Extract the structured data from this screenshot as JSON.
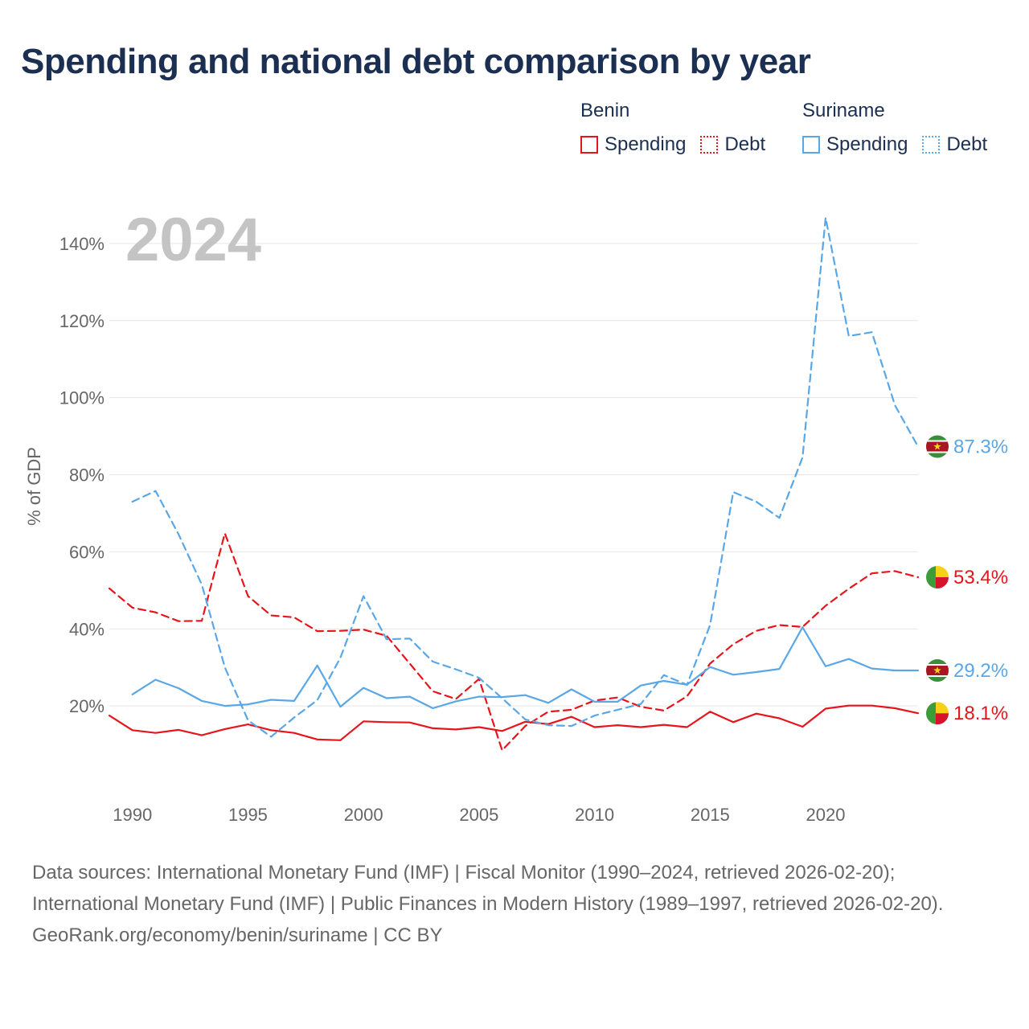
{
  "title": "Spending and national debt comparison by year",
  "legend": {
    "groups": [
      {
        "country": "Benin",
        "color": "#e8141b",
        "spending_label": "Spending",
        "debt_label": "Debt"
      },
      {
        "country": "Suriname",
        "color": "#5aa7e6",
        "spending_label": "Spending",
        "debt_label": "Debt"
      }
    ]
  },
  "chart_data": {
    "type": "line",
    "ylabel": "% of GDP",
    "year_label": "2024",
    "xlim": [
      1989,
      2024
    ],
    "ylim": [
      0,
      150
    ],
    "x_ticks": [
      "1990",
      "1995",
      "2000",
      "2005",
      "2010",
      "2015",
      "2020"
    ],
    "x_tick_values": [
      1990,
      1995,
      2000,
      2005,
      2010,
      2015,
      2020
    ],
    "y_ticks": [
      "20%",
      "40%",
      "60%",
      "80%",
      "100%",
      "120%",
      "140%"
    ],
    "y_tick_values": [
      20,
      40,
      60,
      80,
      100,
      120,
      140
    ],
    "series": [
      {
        "name": "Benin Spending",
        "country": "Benin",
        "kind": "spending",
        "color": "#e8141b",
        "dashed": false,
        "x": [
          1989,
          1990,
          1991,
          1992,
          1993,
          1994,
          1995,
          1996,
          1997,
          1998,
          1999,
          2000,
          2001,
          2002,
          2003,
          2004,
          2005,
          2006,
          2007,
          2008,
          2009,
          2010,
          2011,
          2012,
          2013,
          2014,
          2015,
          2016,
          2017,
          2018,
          2019,
          2020,
          2021,
          2022,
          2023,
          2024
        ],
        "values": [
          17.5,
          13.7,
          13.0,
          13.8,
          12.4,
          14.0,
          15.2,
          13.7,
          13.0,
          11.3,
          11.1,
          16.0,
          15.8,
          15.7,
          14.2,
          13.9,
          14.5,
          13.5,
          15.9,
          15.3,
          17.2,
          14.5,
          15.0,
          14.5,
          15.1,
          14.5,
          18.5,
          15.8,
          18.0,
          16.8,
          14.6,
          19.3,
          20.1,
          20.1,
          19.4,
          18.1
        ]
      },
      {
        "name": "Benin Debt",
        "country": "Benin",
        "kind": "debt",
        "color": "#e8141b",
        "dashed": true,
        "x": [
          1989,
          1990,
          1991,
          1992,
          1993,
          1994,
          1995,
          1996,
          1997,
          1998,
          1999,
          2000,
          2001,
          2002,
          2003,
          2004,
          2005,
          2006,
          2007,
          2008,
          2009,
          2010,
          2011,
          2012,
          2013,
          2014,
          2015,
          2016,
          2017,
          2018,
          2019,
          2020,
          2021,
          2022,
          2023,
          2024
        ],
        "values": [
          50.5,
          45.5,
          44.3,
          42.0,
          42.1,
          64.8,
          48.5,
          43.5,
          43.0,
          39.4,
          39.5,
          39.8,
          38.2,
          31.0,
          23.8,
          21.8,
          27.0,
          8.5,
          14.8,
          18.5,
          19.0,
          21.4,
          22.2,
          19.8,
          18.8,
          22.5,
          31.0,
          36.0,
          39.5,
          41.0,
          40.5,
          46.0,
          50.4,
          54.4,
          55.0,
          53.4
        ]
      },
      {
        "name": "Suriname Spending",
        "country": "Suriname",
        "kind": "spending",
        "color": "#5aa7e6",
        "dashed": false,
        "x": [
          1990,
          1991,
          1992,
          1993,
          1994,
          1995,
          1996,
          1997,
          1998,
          1999,
          2000,
          2001,
          2002,
          2003,
          2004,
          2005,
          2006,
          2007,
          2008,
          2009,
          2010,
          2011,
          2012,
          2013,
          2014,
          2015,
          2016,
          2017,
          2018,
          2019,
          2020,
          2021,
          2022,
          2023,
          2024
        ],
        "values": [
          23.0,
          26.8,
          24.6,
          21.3,
          20.0,
          20.4,
          21.6,
          21.3,
          30.5,
          19.8,
          24.7,
          22.0,
          22.4,
          19.4,
          21.2,
          22.4,
          22.3,
          22.8,
          20.8,
          24.3,
          21.1,
          21.1,
          25.3,
          26.5,
          25.5,
          30.1,
          28.1,
          28.8,
          29.6,
          40.4,
          30.3,
          32.2,
          29.7,
          29.2,
          29.2
        ]
      },
      {
        "name": "Suriname Debt",
        "country": "Suriname",
        "kind": "debt",
        "color": "#5aa7e6",
        "dashed": true,
        "x": [
          1990,
          1991,
          1992,
          1993,
          1994,
          1995,
          1996,
          1997,
          1998,
          1999,
          2000,
          2001,
          2002,
          2003,
          2004,
          2005,
          2006,
          2007,
          2008,
          2009,
          2010,
          2011,
          2012,
          2013,
          2014,
          2015,
          2016,
          2017,
          2018,
          2019,
          2020,
          2021,
          2022,
          2023,
          2024
        ],
        "values": [
          73.0,
          75.8,
          64.5,
          51.5,
          30.0,
          16.3,
          12.0,
          17.0,
          21.5,
          32.5,
          48.5,
          37.3,
          37.5,
          31.5,
          29.5,
          27.3,
          22.0,
          16.5,
          15.0,
          14.8,
          17.5,
          19.0,
          20.5,
          28.0,
          25.5,
          41.0,
          75.5,
          73.0,
          68.8,
          84.5,
          146.7,
          116.0,
          117.0,
          98.0,
          87.3
        ]
      }
    ],
    "end_labels": [
      {
        "series": "Suriname Debt",
        "text": "87.3%",
        "value": 87.3,
        "flag": "suriname",
        "color": "#5aa7e6"
      },
      {
        "series": "Benin Debt",
        "text": "53.4%",
        "value": 53.4,
        "flag": "benin",
        "color": "#e8141b"
      },
      {
        "series": "Suriname Spending",
        "text": "29.2%",
        "value": 29.2,
        "flag": "suriname",
        "color": "#5aa7e6"
      },
      {
        "series": "Benin Spending",
        "text": "18.1%",
        "value": 18.1,
        "flag": "benin",
        "color": "#e8141b"
      }
    ]
  },
  "footer": {
    "sources": "Data sources: International Monetary Fund (IMF) | Fiscal Monitor (1990–2024, retrieved 2026-02-20); International Monetary Fund (IMF) | Public Finances in Modern History (1989–1997, retrieved 2026-02-20).",
    "credit": "GeoRank.org/economy/benin/suriname | CC BY"
  }
}
